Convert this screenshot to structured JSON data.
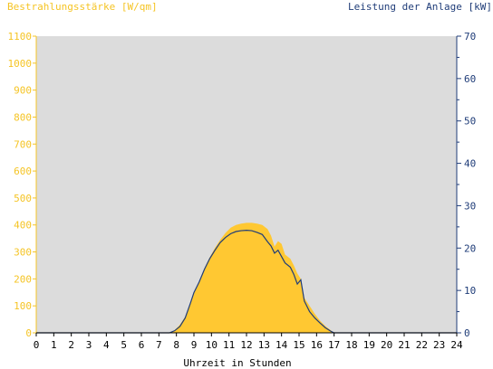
{
  "chart_data": {
    "type": "area",
    "title": "",
    "ylabel_left": "Bestrahlungsstärke [W/qm]",
    "ylabel_right": "Leistung der Anlage [kW]",
    "xlabel": "Uhrzeit in Stunden",
    "xlim": [
      0,
      24
    ],
    "ylim_left": [
      0,
      1100
    ],
    "ylim_right": [
      0,
      70
    ],
    "x_ticks": [
      "0",
      "1",
      "2",
      "3",
      "4",
      "5",
      "6",
      "7",
      "8",
      "9",
      "10",
      "11",
      "12",
      "13",
      "14",
      "15",
      "16",
      "17",
      "18",
      "19",
      "20",
      "21",
      "22",
      "23",
      "24"
    ],
    "y_left_ticks": [
      "0",
      "100",
      "200",
      "300",
      "400",
      "500",
      "600",
      "700",
      "800",
      "900",
      "1000",
      "1100"
    ],
    "y_right_ticks": [
      "0",
      "10",
      "20",
      "30",
      "40",
      "50",
      "60",
      "70"
    ],
    "colors": {
      "plot_bg": "#dcdcdc",
      "irradiance": "#ffc832",
      "power": "#1f3c78",
      "left_axis": "#f5c424",
      "right_axis": "#1f3c78"
    },
    "series": [
      {
        "name": "Bestrahlungsstärke [W/qm]",
        "axis": "left",
        "style": "area",
        "x": [
          0,
          7.6,
          7.9,
          8.2,
          8.5,
          8.8,
          9.0,
          9.3,
          9.6,
          9.9,
          10.2,
          10.5,
          10.8,
          11.1,
          11.4,
          11.7,
          12.0,
          12.3,
          12.6,
          12.9,
          13.2,
          13.4,
          13.6,
          13.8,
          14.0,
          14.2,
          14.5,
          14.7,
          14.9,
          15.1,
          15.3,
          15.6,
          15.9,
          16.2,
          16.5,
          16.8,
          17.0,
          24
        ],
        "y": [
          0,
          0,
          10,
          30,
          60,
          110,
          150,
          190,
          240,
          280,
          315,
          345,
          370,
          390,
          400,
          405,
          408,
          408,
          405,
          400,
          385,
          360,
          320,
          340,
          330,
          290,
          275,
          250,
          220,
          200,
          130,
          100,
          70,
          45,
          25,
          10,
          0,
          0
        ]
      },
      {
        "name": "Leistung der Anlage [kW]",
        "axis": "right",
        "style": "line",
        "x": [
          0,
          7.6,
          7.9,
          8.2,
          8.5,
          8.8,
          9.0,
          9.3,
          9.6,
          9.9,
          10.2,
          10.5,
          10.8,
          11.1,
          11.4,
          11.7,
          12.0,
          12.3,
          12.6,
          12.9,
          13.2,
          13.4,
          13.6,
          13.8,
          14.0,
          14.2,
          14.5,
          14.7,
          14.9,
          15.1,
          15.3,
          15.6,
          15.9,
          16.2,
          16.5,
          16.8,
          17.0,
          24
        ],
        "y": [
          0,
          0,
          0.5,
          1.5,
          3.5,
          7,
          9.5,
          12,
          15,
          17.5,
          19.5,
          21.3,
          22.5,
          23.4,
          23.9,
          24.1,
          24.2,
          24.1,
          23.7,
          23.2,
          21.5,
          20.5,
          18.8,
          19.5,
          18,
          16.5,
          15.5,
          13.8,
          11.5,
          12.5,
          7.5,
          5,
          3.5,
          2.3,
          1.2,
          0.4,
          0,
          0
        ]
      }
    ]
  }
}
